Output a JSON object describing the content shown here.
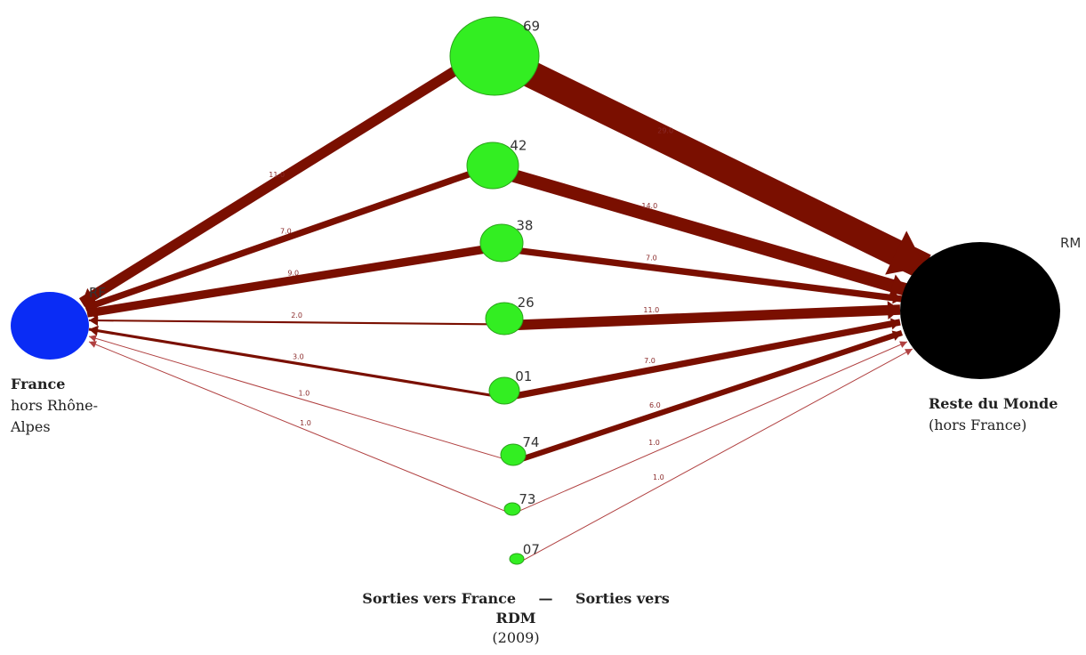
{
  "diagram": {
    "colors": {
      "flow": "#7a0f00",
      "thin_flow": "#b04040",
      "source_node": "#0a2cf5",
      "region_node": "#33ee22",
      "sink_node": "#000000"
    },
    "source": {
      "code": "RF",
      "title": "France",
      "subtitle": "hors Rhône-Alpes"
    },
    "sink": {
      "code": "RM",
      "title": "Reste du Monde",
      "subtitle": "(hors France)"
    },
    "regions": [
      {
        "code": "69",
        "to_france": "11.0",
        "to_rdm": "29.0"
      },
      {
        "code": "42",
        "to_france": "7.0",
        "to_rdm": "14.0"
      },
      {
        "code": "38",
        "to_france": "9.0",
        "to_rdm": "7.0"
      },
      {
        "code": "26",
        "to_france": "2.0",
        "to_rdm": "11.0"
      },
      {
        "code": "01",
        "to_france": "3.0",
        "to_rdm": "7.0"
      },
      {
        "code": "74",
        "to_france": "1.0",
        "to_rdm": "6.0"
      },
      {
        "code": "73",
        "to_france": "1.0",
        "to_rdm": "1.0"
      },
      {
        "code": "07",
        "to_france": "",
        "to_rdm": "1.0"
      }
    ],
    "caption": {
      "line1_left": "Sorties vers France",
      "dash": "—",
      "line1_right": "Sorties vers",
      "line2": "RDM",
      "year": "(2009)"
    }
  }
}
